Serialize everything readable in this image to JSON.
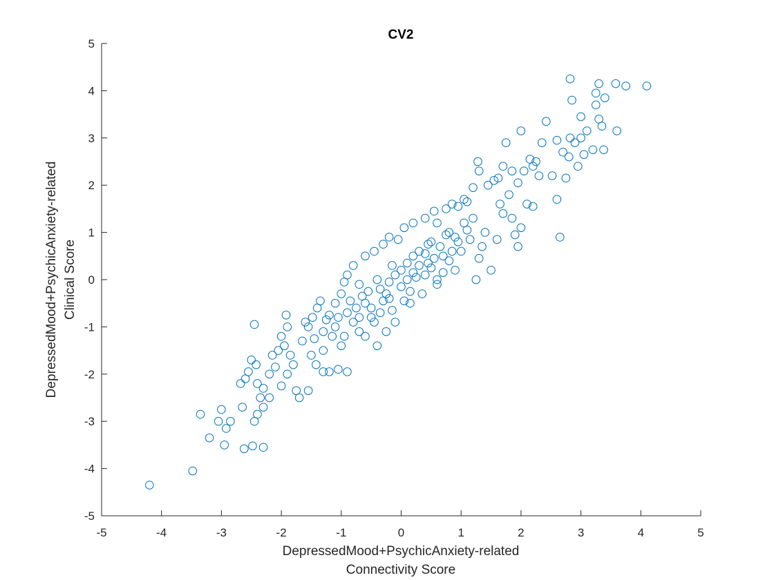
{
  "chart_data": {
    "type": "scatter",
    "title": "CV2",
    "xlabel": [
      "DepressedMood+PsychicAnxiety-related",
      "Connectivity Score"
    ],
    "ylabel": [
      "DepressedMood+PsychicAnxiety-related",
      "Clinical Score"
    ],
    "xlim": [
      -5,
      5
    ],
    "ylim": [
      -5,
      5
    ],
    "xticks": [
      -5,
      -4,
      -3,
      -2,
      -1,
      0,
      1,
      2,
      3,
      4,
      5
    ],
    "yticks": [
      -5,
      -4,
      -3,
      -2,
      -1,
      0,
      1,
      2,
      3,
      4,
      5
    ],
    "xtick_labels": [
      "-5",
      "-4",
      "-3",
      "-2",
      "-1",
      "0",
      "1",
      "2",
      "3",
      "4",
      "5"
    ],
    "ytick_labels": [
      "-5",
      "-4",
      "-3",
      "-2",
      "-1",
      "0",
      "1",
      "2",
      "3",
      "4",
      "5"
    ],
    "grid": false,
    "legend": "none",
    "marker": "open-circle",
    "color": "#0072BD",
    "points": [
      [
        -4.2,
        -4.35
      ],
      [
        -3.48,
        -4.05
      ],
      [
        -3.35,
        -2.85
      ],
      [
        -3.2,
        -3.35
      ],
      [
        -3.05,
        -3.0
      ],
      [
        -3.0,
        -2.75
      ],
      [
        -2.95,
        -3.5
      ],
      [
        -2.92,
        -3.15
      ],
      [
        -2.85,
        -3.0
      ],
      [
        -2.62,
        -3.58
      ],
      [
        -2.48,
        -3.52
      ],
      [
        -2.3,
        -3.55
      ],
      [
        -2.45,
        -3.0
      ],
      [
        -2.4,
        -2.85
      ],
      [
        -2.3,
        -2.7
      ],
      [
        -2.2,
        -2.5
      ],
      [
        -2.35,
        -2.5
      ],
      [
        -2.65,
        -2.7
      ],
      [
        -2.45,
        -0.95
      ],
      [
        -2.5,
        -1.7
      ],
      [
        -2.42,
        -1.8
      ],
      [
        -2.55,
        -1.95
      ],
      [
        -2.6,
        -2.1
      ],
      [
        -2.68,
        -2.2
      ],
      [
        -2.4,
        -2.2
      ],
      [
        -2.3,
        -2.3
      ],
      [
        -2.2,
        -2.0
      ],
      [
        -2.1,
        -1.85
      ],
      [
        -2.15,
        -1.6
      ],
      [
        -2.05,
        -1.5
      ],
      [
        -2.0,
        -1.2
      ],
      [
        -1.95,
        -1.4
      ],
      [
        -1.9,
        -1.0
      ],
      [
        -1.92,
        -0.75
      ],
      [
        -1.85,
        -1.6
      ],
      [
        -1.8,
        -1.8
      ],
      [
        -1.9,
        -2.0
      ],
      [
        -2.0,
        -2.25
      ],
      [
        -1.75,
        -2.35
      ],
      [
        -1.7,
        -2.5
      ],
      [
        -1.55,
        -2.35
      ],
      [
        -1.65,
        -1.3
      ],
      [
        -1.55,
        -1.0
      ],
      [
        -1.48,
        -0.8
      ],
      [
        -1.4,
        -0.6
      ],
      [
        -1.35,
        -0.45
      ],
      [
        -1.6,
        -0.9
      ],
      [
        -1.5,
        -1.6
      ],
      [
        -1.42,
        -1.8
      ],
      [
        -1.3,
        -1.95
      ],
      [
        -1.2,
        -1.95
      ],
      [
        -1.05,
        -1.9
      ],
      [
        -0.9,
        -1.95
      ],
      [
        -1.3,
        -1.1
      ],
      [
        -1.2,
        -0.75
      ],
      [
        -1.1,
        -0.5
      ],
      [
        -1.0,
        -0.3
      ],
      [
        -0.95,
        -0.05
      ],
      [
        -0.9,
        0.1
      ],
      [
        -0.8,
        0.3
      ],
      [
        -0.7,
        -0.1
      ],
      [
        -0.6,
        0.5
      ],
      [
        -0.45,
        0.6
      ],
      [
        -0.3,
        0.75
      ],
      [
        -0.2,
        0.9
      ],
      [
        -0.05,
        0.85
      ],
      [
        0.05,
        1.1
      ],
      [
        0.2,
        1.2
      ],
      [
        0.4,
        1.3
      ],
      [
        0.55,
        1.45
      ],
      [
        0.6,
        1.2
      ],
      [
        0.75,
        1.5
      ],
      [
        0.85,
        1.6
      ],
      [
        0.95,
        1.55
      ],
      [
        1.05,
        1.7
      ],
      [
        1.1,
        1.65
      ],
      [
        1.2,
        1.95
      ],
      [
        1.28,
        2.5
      ],
      [
        1.3,
        2.3
      ],
      [
        1.45,
        2.0
      ],
      [
        1.55,
        2.1
      ],
      [
        1.62,
        2.15
      ],
      [
        1.7,
        2.4
      ],
      [
        1.75,
        2.9
      ],
      [
        1.85,
        2.3
      ],
      [
        1.95,
        2.05
      ],
      [
        2.05,
        2.3
      ],
      [
        2.15,
        2.55
      ],
      [
        2.2,
        2.4
      ],
      [
        2.25,
        2.5
      ],
      [
        2.3,
        2.2
      ],
      [
        2.35,
        2.9
      ],
      [
        2.0,
        3.15
      ],
      [
        2.42,
        3.35
      ],
      [
        2.6,
        2.95
      ],
      [
        2.52,
        2.2
      ],
      [
        2.6,
        1.7
      ],
      [
        2.65,
        0.9
      ],
      [
        2.75,
        2.15
      ],
      [
        2.7,
        2.7
      ],
      [
        2.8,
        2.6
      ],
      [
        2.82,
        3.0
      ],
      [
        2.85,
        3.8
      ],
      [
        2.82,
        4.25
      ],
      [
        2.95,
        2.4
      ],
      [
        2.9,
        2.9
      ],
      [
        3.0,
        3.0
      ],
      [
        3.05,
        2.65
      ],
      [
        3.0,
        3.45
      ],
      [
        3.1,
        3.15
      ],
      [
        3.2,
        2.75
      ],
      [
        3.25,
        3.95
      ],
      [
        3.3,
        3.4
      ],
      [
        3.25,
        3.7
      ],
      [
        3.3,
        4.15
      ],
      [
        3.35,
        3.25
      ],
      [
        3.38,
        2.75
      ],
      [
        3.4,
        3.85
      ],
      [
        3.58,
        4.15
      ],
      [
        3.6,
        3.15
      ],
      [
        3.75,
        4.1
      ],
      [
        4.1,
        4.1
      ],
      [
        2.2,
        1.55
      ],
      [
        2.1,
        1.6
      ],
      [
        2.0,
        1.1
      ],
      [
        1.95,
        0.7
      ],
      [
        1.9,
        0.95
      ],
      [
        1.85,
        1.3
      ],
      [
        1.7,
        1.4
      ],
      [
        1.6,
        0.85
      ],
      [
        1.5,
        0.2
      ],
      [
        1.35,
        0.7
      ],
      [
        1.3,
        0.45
      ],
      [
        1.25,
        0.0
      ],
      [
        1.2,
        1.3
      ],
      [
        1.4,
        1.0
      ],
      [
        1.8,
        1.8
      ],
      [
        1.65,
        1.6
      ],
      [
        0.9,
        0.2
      ],
      [
        0.7,
        0.15
      ],
      [
        0.5,
        0.8
      ],
      [
        0.3,
        0.6
      ],
      [
        0.0,
        0.2
      ],
      [
        -0.2,
        -0.4
      ],
      [
        -0.5,
        -0.8
      ],
      [
        -0.7,
        -1.1
      ],
      [
        -1.0,
        -1.4
      ],
      [
        -1.15,
        -1.2
      ],
      [
        -0.4,
        -1.4
      ],
      [
        -0.25,
        -1.1
      ],
      [
        -0.1,
        -0.9
      ],
      [
        0.15,
        -0.5
      ],
      [
        0.35,
        -0.3
      ],
      [
        0.6,
        -0.1
      ],
      [
        0.8,
        0.4
      ],
      [
        1.0,
        0.6
      ],
      [
        -0.8,
        -0.9
      ],
      [
        -0.6,
        -0.5
      ],
      [
        -0.35,
        -0.2
      ],
      [
        -0.1,
        0.1
      ],
      [
        0.1,
        0.35
      ],
      [
        0.4,
        0.55
      ],
      [
        0.65,
        0.7
      ],
      [
        0.9,
        0.9
      ],
      [
        1.1,
        1.05
      ],
      [
        -1.3,
        -1.5
      ],
      [
        -1.1,
        -1.0
      ],
      [
        -0.9,
        -0.7
      ],
      [
        -0.65,
        -0.35
      ],
      [
        -0.4,
        0.0
      ],
      [
        -0.15,
        0.3
      ],
      [
        0.2,
        0.15
      ],
      [
        0.45,
        0.35
      ],
      [
        0.7,
        0.5
      ],
      [
        0.95,
        0.8
      ],
      [
        -0.5,
        -0.6
      ],
      [
        -0.3,
        -0.45
      ],
      [
        0.0,
        -0.15
      ],
      [
        0.25,
        0.05
      ],
      [
        0.5,
        0.25
      ],
      [
        -0.75,
        -0.6
      ],
      [
        -0.55,
        -0.25
      ],
      [
        -0.2,
        -0.05
      ],
      [
        0.1,
        0.0
      ],
      [
        0.3,
        0.3
      ],
      [
        0.55,
        0.45
      ],
      [
        -1.05,
        -0.8
      ],
      [
        -0.85,
        -0.45
      ],
      [
        -0.45,
        -0.9
      ],
      [
        -0.15,
        -0.65
      ],
      [
        0.15,
        -0.25
      ],
      [
        0.4,
        0.1
      ],
      [
        0.75,
        0.95
      ],
      [
        1.15,
        0.85
      ],
      [
        -1.45,
        -1.25
      ],
      [
        -1.25,
        -0.85
      ],
      [
        -0.6,
        -1.2
      ],
      [
        -0.35,
        -0.7
      ],
      [
        0.05,
        -0.45
      ],
      [
        0.6,
        0.0
      ],
      [
        0.85,
        0.6
      ],
      [
        1.05,
        1.2
      ],
      [
        -0.95,
        -1.2
      ],
      [
        -0.7,
        -0.8
      ],
      [
        -0.25,
        -0.3
      ],
      [
        0.2,
        0.5
      ],
      [
        0.45,
        0.75
      ],
      [
        0.8,
        1.0
      ]
    ]
  }
}
